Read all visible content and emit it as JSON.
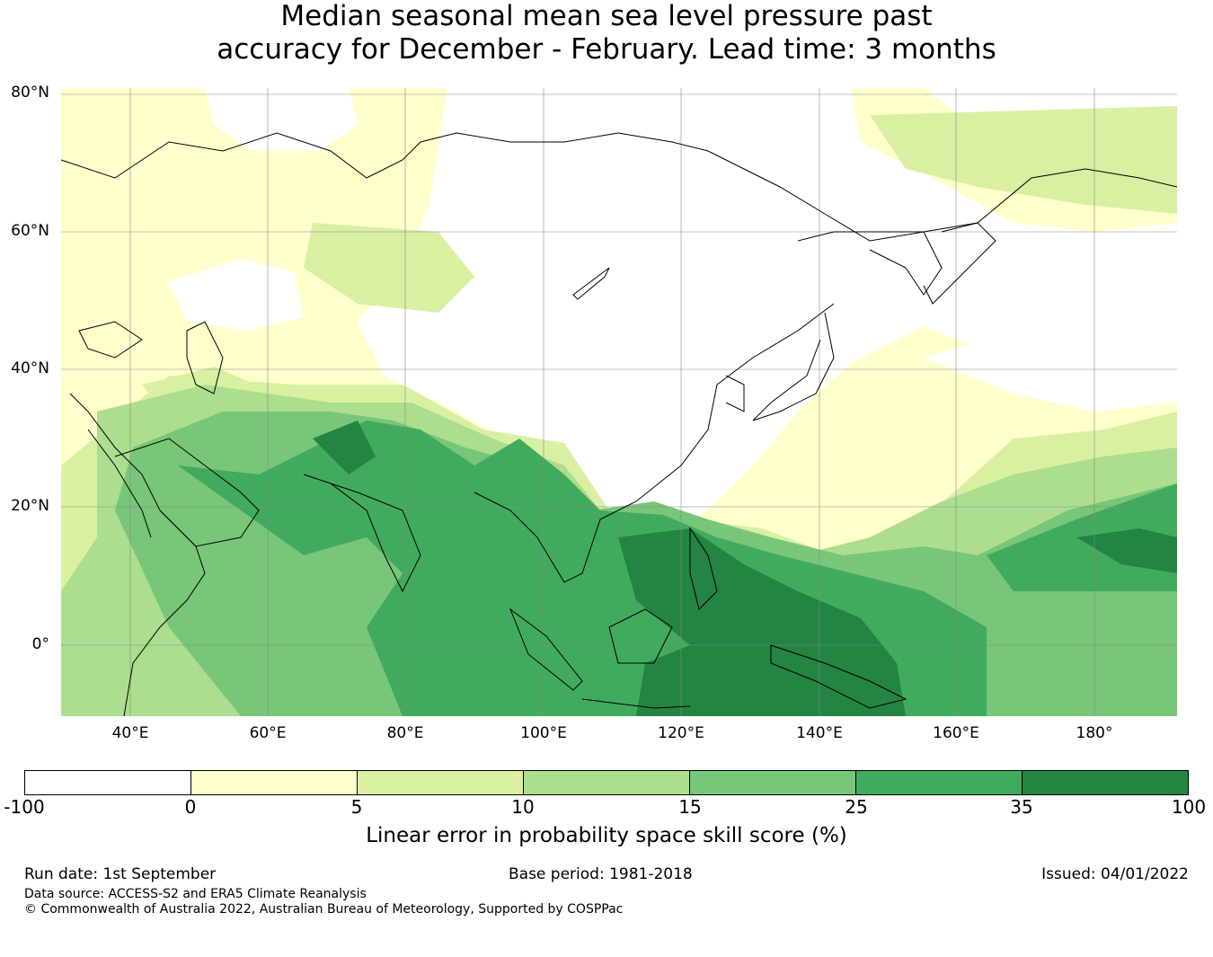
{
  "title_line1": "Median seasonal mean sea level pressure past",
  "title_line2": "accuracy for December - February. Lead time: 3 months",
  "map": {
    "lat_labels": [
      "80°N",
      "60°N",
      "40°N",
      "20°N",
      "0°"
    ],
    "lon_labels": [
      "40°E",
      "60°E",
      "80°E",
      "100°E",
      "120°E",
      "140°E",
      "160°E",
      "180°"
    ]
  },
  "colorbar": {
    "ticks": [
      "-100",
      "0",
      "5",
      "10",
      "15",
      "25",
      "35",
      "100"
    ],
    "colors": [
      "#ffffff",
      "#ffffcc",
      "#d9f0a3",
      "#addd8e",
      "#78c679",
      "#41ab5d",
      "#238443"
    ],
    "label": "Linear error in probability space skill score (%)"
  },
  "footer": {
    "run_date": "Run date: 1st September",
    "base_period": "Base period: 1981-2018",
    "issued": "Issued: 04/01/2022",
    "data_source": "Data source: ACCESS-S2 and ERA5 Climate Reanalysis",
    "copyright": "© Commonwealth of Australia 2022, Australian Bureau of Meteorology, Supported by COSPPac"
  }
}
